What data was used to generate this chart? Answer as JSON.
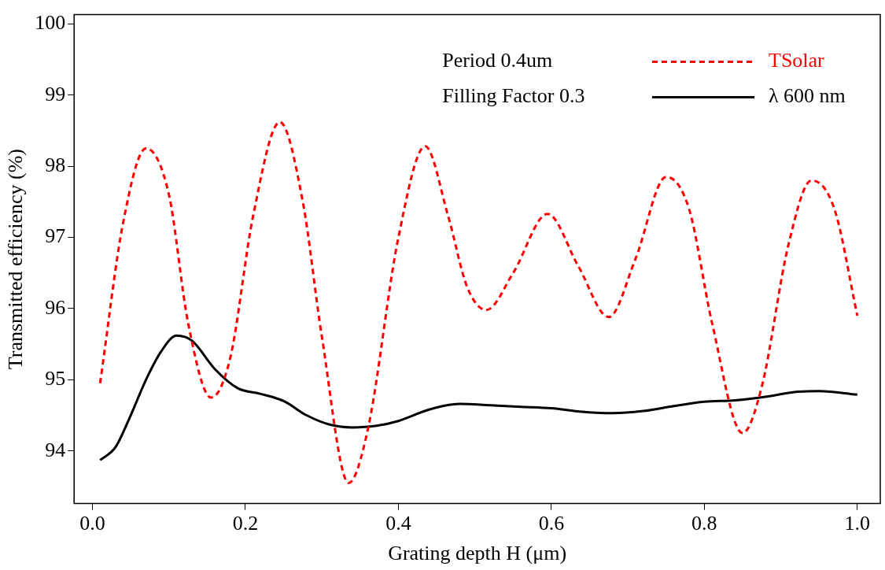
{
  "chart_data": {
    "type": "line",
    "xlabel": "Grating depth H (μm)",
    "ylabel": "Transmitted efficiency (%)",
    "xlim": [
      -0.024,
      1.03
    ],
    "ylim": [
      93.26,
      100.13
    ],
    "xticks": [
      {
        "value": 0,
        "label": "0.0"
      },
      {
        "value": 0.2,
        "label": "0.2"
      },
      {
        "value": 0.4,
        "label": "0.4"
      },
      {
        "value": 0.6,
        "label": "0.6"
      },
      {
        "value": 0.8,
        "label": "0.8"
      },
      {
        "value": 1,
        "label": "1.0"
      }
    ],
    "yticks": [
      94,
      95,
      96,
      97,
      98,
      99,
      100
    ],
    "grid": false,
    "legend": "top right",
    "marker": "none",
    "annotations": [
      "Period 0.4um",
      "Filling Factor 0.3"
    ],
    "series": [
      {
        "name": "TSolar",
        "color": "#ff0000",
        "line_style": "dashed",
        "x": [
          0.01,
          0.04,
          0.07,
          0.1,
          0.125,
          0.155,
          0.18,
          0.21,
          0.245,
          0.275,
          0.3,
          0.335,
          0.36,
          0.4,
          0.435,
          0.465,
          0.49,
          0.515,
          0.55,
          0.595,
          0.635,
          0.675,
          0.71,
          0.75,
          0.78,
          0.81,
          0.85,
          0.875,
          0.91,
          0.94,
          0.97,
          1.0
        ],
        "values": [
          94.95,
          97.2,
          98.25,
          97.6,
          95.8,
          94.75,
          95.3,
          97.3,
          98.62,
          97.5,
          95.6,
          93.55,
          94.3,
          97.0,
          98.28,
          97.3,
          96.3,
          95.98,
          96.5,
          97.33,
          96.6,
          95.88,
          96.7,
          97.85,
          97.4,
          95.8,
          94.25,
          94.9,
          96.9,
          97.8,
          97.4,
          95.9
        ]
      },
      {
        "name": "λ 600 nm",
        "color": "#000000",
        "line_style": "solid",
        "x": [
          0.01,
          0.03,
          0.05,
          0.07,
          0.09,
          0.11,
          0.13,
          0.16,
          0.19,
          0.22,
          0.25,
          0.28,
          0.31,
          0.34,
          0.37,
          0.4,
          0.44,
          0.48,
          0.52,
          0.56,
          0.6,
          0.64,
          0.68,
          0.72,
          0.76,
          0.8,
          0.84,
          0.88,
          0.92,
          0.95,
          1.0
        ],
        "values": [
          93.87,
          94.05,
          94.5,
          95.0,
          95.4,
          95.62,
          95.55,
          95.15,
          94.88,
          94.8,
          94.7,
          94.5,
          94.37,
          94.33,
          94.35,
          94.42,
          94.58,
          94.66,
          94.64,
          94.62,
          94.6,
          94.55,
          94.53,
          94.56,
          94.63,
          94.69,
          94.71,
          94.76,
          94.83,
          94.84,
          94.79
        ]
      }
    ]
  }
}
